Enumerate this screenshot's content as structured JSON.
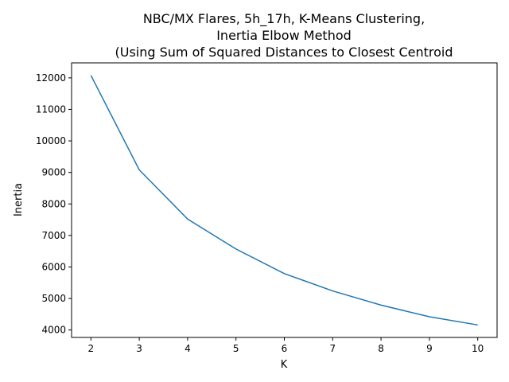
{
  "chart_data": {
    "type": "line",
    "title_lines": [
      "NBC/MX Flares, 5h_17h, K-Means Clustering,",
      "Inertia Elbow Method",
      "(Using Sum of Squared Distances to Closest Centroid"
    ],
    "xlabel": "K",
    "ylabel": "Inertia",
    "x": [
      2,
      3,
      4,
      5,
      6,
      7,
      8,
      9,
      10
    ],
    "y": [
      12080,
      9080,
      7520,
      6570,
      5790,
      5240,
      4790,
      4420,
      4160
    ],
    "xlim": [
      1.6,
      10.4
    ],
    "ylim": [
      3764,
      12476
    ],
    "xticks": [
      "2",
      "3",
      "4",
      "5",
      "6",
      "7",
      "8",
      "9",
      "10"
    ],
    "xtick_values": [
      2,
      3,
      4,
      5,
      6,
      7,
      8,
      9,
      10
    ],
    "yticks": [
      "4000",
      "5000",
      "6000",
      "7000",
      "8000",
      "9000",
      "10000",
      "11000",
      "12000"
    ],
    "ytick_values": [
      4000,
      5000,
      6000,
      7000,
      8000,
      9000,
      10000,
      11000,
      12000
    ],
    "grid": false,
    "line_color": "#1f77b4"
  }
}
